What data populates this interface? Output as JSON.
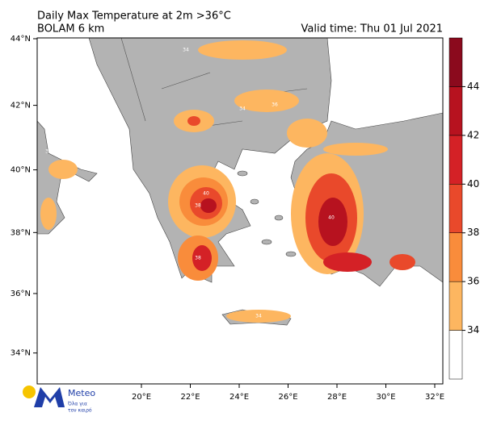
{
  "header": {
    "title": "Daily Max Temperature at 2m >36°C",
    "subtitle": "BOLAM 6 km",
    "valid_time": "Valid time: Thu 01 Jul 2021"
  },
  "map": {
    "lon_ticks": [
      {
        "value": 20,
        "label": "20°E"
      },
      {
        "value": 22,
        "label": "22°E"
      },
      {
        "value": 24,
        "label": "24°E"
      },
      {
        "value": 26,
        "label": "26°E"
      },
      {
        "value": 28,
        "label": "28°E"
      },
      {
        "value": 30,
        "label": "30°E"
      },
      {
        "value": 32,
        "label": "32°E"
      }
    ],
    "lat_ticks": [
      {
        "value": 44,
        "label": "44°N"
      },
      {
        "value": 42,
        "label": "42°N"
      },
      {
        "value": 40,
        "label": "40°N"
      },
      {
        "value": 38,
        "label": "38°N"
      },
      {
        "value": 36,
        "label": "36°N"
      },
      {
        "value": 34,
        "label": "34°N"
      }
    ],
    "contour_labels": [
      34,
      34,
      34,
      36,
      38,
      40,
      40,
      38,
      34
    ]
  },
  "colorbar": {
    "ticks": [
      34,
      36,
      38,
      40,
      42,
      44
    ],
    "colors": [
      "#ffffff",
      "#fdb660",
      "#f98c3b",
      "#e9492b",
      "#d42126",
      "#b7121f",
      "#8b0a1d"
    ]
  },
  "logo": {
    "name": "Meteo",
    "tagline": [
      "Όλα για",
      "τον καιρό"
    ]
  }
}
